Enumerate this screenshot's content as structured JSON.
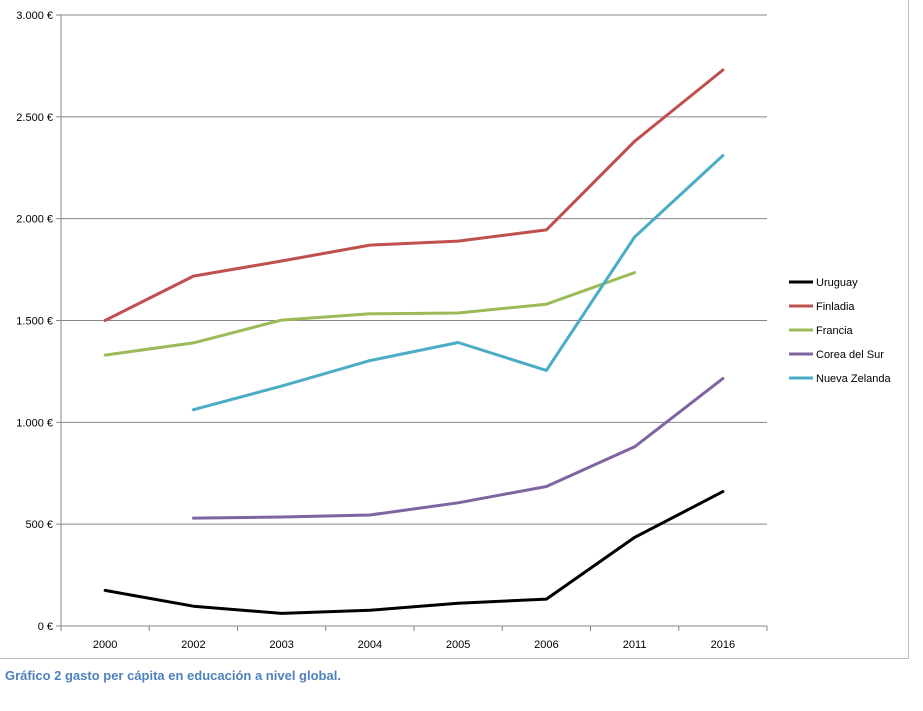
{
  "caption": "Gráfico 2 gasto per cápita en educación a nivel global.",
  "chart_data": {
    "type": "line",
    "categories": [
      "2000",
      "2002",
      "2003",
      "2004",
      "2005",
      "2006",
      "2011",
      "2016"
    ],
    "ylim": [
      0,
      3000
    ],
    "yticks": [
      0,
      500,
      1000,
      1500,
      2000,
      2500,
      3000
    ],
    "ytick_labels": [
      "0 €",
      "500 €",
      "1.000 €",
      "1.500 €",
      "2.000 €",
      "2.500 €",
      "3.000 €"
    ],
    "grid": true,
    "legend_position": "right",
    "series": [
      {
        "name": "Uruguay",
        "color": "#000000",
        "values": [
          175,
          97,
          62,
          77,
          112,
          132,
          435,
          660
        ]
      },
      {
        "name": "Finladia",
        "color": "#c0504d",
        "values": [
          1500,
          1718,
          1792,
          1870,
          1890,
          1945,
          2380,
          2730
        ]
      },
      {
        "name": "Francia",
        "color": "#9bbb59",
        "values": [
          1330,
          1390,
          1502,
          1533,
          1537,
          1580,
          1735,
          null
        ]
      },
      {
        "name": "Corea del Sur",
        "color": "#8064a2",
        "values": [
          null,
          530,
          535,
          545,
          605,
          685,
          880,
          1215
        ]
      },
      {
        "name": "Nueva Zelanda",
        "color": "#4bacc6",
        "values": [
          null,
          1062,
          1178,
          1303,
          1392,
          1255,
          1910,
          2310
        ]
      }
    ]
  }
}
